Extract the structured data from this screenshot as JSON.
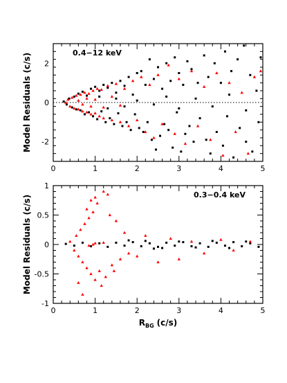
{
  "chart_data": [
    {
      "type": "scatter",
      "annotation": "0.4−12 keV",
      "xlabel": "",
      "ylabel": "Model Residuals (c/s)",
      "xlim": [
        0,
        5
      ],
      "ylim": [
        -3,
        3
      ],
      "xticks": [
        0,
        1,
        2,
        3,
        4,
        5
      ],
      "yticks": [
        -2,
        0,
        2
      ],
      "reference_line": 0,
      "colors": {
        "series_a": "#000000",
        "series_b": "#ff0000"
      },
      "series": [
        {
          "marker": "square",
          "color_key": "series_a",
          "points": [
            [
              0.25,
              0.05
            ],
            [
              0.32,
              -0.1
            ],
            [
              0.38,
              0.2
            ],
            [
              0.45,
              -0.25
            ],
            [
              0.5,
              0.3
            ],
            [
              0.55,
              -0.35
            ],
            [
              0.6,
              0.45
            ],
            [
              0.65,
              -0.4
            ],
            [
              0.7,
              0.55
            ],
            [
              0.75,
              -0.6
            ],
            [
              0.8,
              0.35
            ],
            [
              0.85,
              -0.5
            ],
            [
              0.9,
              0.7
            ],
            [
              0.95,
              -0.7
            ],
            [
              1.0,
              0.8
            ],
            [
              1.05,
              -0.85
            ],
            [
              1.1,
              0.6
            ],
            [
              1.15,
              -0.45
            ],
            [
              1.2,
              0.9
            ],
            [
              1.25,
              -1.0
            ],
            [
              1.3,
              0.75
            ],
            [
              1.35,
              -0.8
            ],
            [
              1.4,
              1.0
            ],
            [
              1.45,
              -1.1
            ],
            [
              1.5,
              0.5
            ],
            [
              1.55,
              -0.55
            ],
            [
              1.6,
              1.1
            ],
            [
              1.65,
              -1.2
            ],
            [
              1.7,
              0.85
            ],
            [
              1.75,
              -1.0
            ],
            [
              1.8,
              1.3
            ],
            [
              1.85,
              -1.4
            ],
            [
              1.9,
              0.4
            ],
            [
              1.95,
              -0.6
            ],
            [
              2.0,
              1.5
            ],
            [
              2.05,
              -1.3
            ],
            [
              2.1,
              1.6
            ],
            [
              2.15,
              -1.5
            ],
            [
              2.2,
              0.9
            ],
            [
              2.25,
              -1.0
            ],
            [
              2.3,
              2.2
            ],
            [
              2.35,
              -1.9
            ],
            [
              2.4,
              1.2
            ],
            [
              2.45,
              -2.4
            ],
            [
              2.5,
              1.8
            ],
            [
              2.55,
              -1.7
            ],
            [
              2.6,
              0.7
            ],
            [
              2.65,
              -1.1
            ],
            [
              2.7,
              2.0
            ],
            [
              2.75,
              -1.4
            ],
            [
              2.8,
              1.1
            ],
            [
              2.85,
              -2.3
            ],
            [
              2.9,
              2.3
            ],
            [
              2.95,
              -0.5
            ],
            [
              3.0,
              1.5
            ],
            [
              3.05,
              -2.5
            ],
            [
              3.1,
              0.9
            ],
            [
              3.15,
              -1.6
            ],
            [
              3.2,
              2.1
            ],
            [
              3.25,
              -1.2
            ],
            [
              3.3,
              1.7
            ],
            [
              3.35,
              -2.0
            ],
            [
              3.45,
              1.0
            ],
            [
              3.5,
              -0.8
            ],
            [
              3.6,
              2.4
            ],
            [
              3.65,
              -1.9
            ],
            [
              3.7,
              1.3
            ],
            [
              3.75,
              -2.6
            ],
            [
              3.85,
              2.0
            ],
            [
              3.9,
              -1.5
            ],
            [
              4.0,
              1.0
            ],
            [
              4.05,
              -2.2
            ],
            [
              4.1,
              2.6
            ],
            [
              4.15,
              -0.7
            ],
            [
              4.25,
              1.6
            ],
            [
              4.3,
              -2.8
            ],
            [
              4.4,
              2.2
            ],
            [
              4.45,
              -1.3
            ],
            [
              4.55,
              2.9
            ],
            [
              4.6,
              -2.0
            ],
            [
              4.7,
              1.4
            ],
            [
              4.75,
              -2.5
            ],
            [
              4.85,
              0.6
            ],
            [
              4.9,
              -1.0
            ],
            [
              4.95,
              2.3
            ],
            [
              1.1,
              0.3
            ],
            [
              1.3,
              -0.3
            ],
            [
              1.5,
              0.2
            ],
            [
              1.7,
              -0.2
            ],
            [
              2.0,
              0.1
            ],
            [
              2.4,
              -0.1
            ],
            [
              2.7,
              0.3
            ],
            [
              3.0,
              -0.3
            ],
            [
              3.4,
              0.2
            ],
            [
              3.8,
              -0.2
            ],
            [
              4.2,
              0.4
            ],
            [
              4.6,
              -0.4
            ]
          ]
        },
        {
          "marker": "triangle",
          "color_key": "series_b",
          "points": [
            [
              0.3,
              0.0
            ],
            [
              0.35,
              0.15
            ],
            [
              0.4,
              -0.2
            ],
            [
              0.45,
              0.25
            ],
            [
              0.5,
              -0.3
            ],
            [
              0.55,
              0.35
            ],
            [
              0.6,
              -0.35
            ],
            [
              0.65,
              0.4
            ],
            [
              0.7,
              -0.45
            ],
            [
              0.75,
              0.5
            ],
            [
              0.8,
              -0.5
            ],
            [
              0.85,
              0.45
            ],
            [
              0.9,
              -0.6
            ],
            [
              0.95,
              0.6
            ],
            [
              1.0,
              -0.55
            ],
            [
              1.05,
              0.7
            ],
            [
              1.1,
              -0.7
            ],
            [
              1.15,
              0.65
            ],
            [
              1.2,
              -0.8
            ],
            [
              1.3,
              0.85
            ],
            [
              1.4,
              -0.9
            ],
            [
              1.5,
              0.95
            ],
            [
              1.6,
              -1.0
            ],
            [
              1.7,
              0.7
            ],
            [
              1.8,
              -1.2
            ],
            [
              1.9,
              1.1
            ],
            [
              2.0,
              -0.9
            ],
            [
              2.1,
              1.3
            ],
            [
              2.2,
              -1.5
            ],
            [
              2.3,
              0.9
            ],
            [
              2.4,
              -1.8
            ],
            [
              2.5,
              1.4
            ],
            [
              2.6,
              -1.1
            ],
            [
              2.75,
              1.9
            ],
            [
              2.9,
              -1.6
            ],
            [
              3.0,
              1.2
            ],
            [
              3.15,
              -2.1
            ],
            [
              3.3,
              1.6
            ],
            [
              3.45,
              -1.2
            ],
            [
              3.6,
              0.8
            ],
            [
              3.75,
              -1.9
            ],
            [
              3.9,
              1.5
            ],
            [
              4.05,
              -2.7
            ],
            [
              4.2,
              1.0
            ],
            [
              4.35,
              -1.5
            ],
            [
              4.5,
              0.5
            ],
            [
              4.65,
              -2.6
            ],
            [
              4.8,
              1.3
            ],
            [
              4.95,
              1.6
            ],
            [
              0.6,
              0.1
            ],
            [
              0.7,
              -0.1
            ],
            [
              0.8,
              0.2
            ],
            [
              0.9,
              -0.2
            ],
            [
              1.0,
              0.15
            ],
            [
              1.2,
              -0.25
            ],
            [
              1.4,
              0.3
            ],
            [
              1.6,
              -0.15
            ]
          ]
        }
      ]
    },
    {
      "type": "scatter",
      "annotation": "0.3−0.4 keV",
      "xlabel": "R",
      "xlabel_sub": "BG",
      "xlabel_unit": "(c/s)",
      "ylabel": "Model Residuals (c/s)",
      "xlim": [
        0,
        5
      ],
      "ylim": [
        -1,
        1
      ],
      "xticks": [
        0,
        1,
        2,
        3,
        4,
        5
      ],
      "yticks": [
        -1,
        -0.5,
        0,
        0.5,
        1
      ],
      "colors": {
        "series_a": "#000000",
        "series_b": "#ff0000"
      },
      "series": [
        {
          "marker": "square",
          "color_key": "series_a",
          "points": [
            [
              0.3,
              0.01
            ],
            [
              0.5,
              -0.02
            ],
            [
              0.7,
              0.03
            ],
            [
              0.9,
              -0.03
            ],
            [
              1.1,
              0.02
            ],
            [
              1.3,
              -0.04
            ],
            [
              1.5,
              0.03
            ],
            [
              1.7,
              -0.02
            ],
            [
              1.9,
              0.04
            ],
            [
              2.1,
              -0.03
            ],
            [
              2.3,
              0.02
            ],
            [
              2.5,
              -0.04
            ],
            [
              2.7,
              0.03
            ],
            [
              2.9,
              -0.02
            ],
            [
              3.1,
              0.04
            ],
            [
              3.3,
              -0.03
            ],
            [
              3.5,
              0.02
            ],
            [
              3.7,
              -0.04
            ],
            [
              3.9,
              0.03
            ],
            [
              4.1,
              -0.02
            ],
            [
              4.3,
              0.04
            ],
            [
              4.5,
              -0.03
            ],
            [
              4.7,
              0.02
            ],
            [
              4.9,
              -0.04
            ],
            [
              2.2,
              0.06
            ],
            [
              2.6,
              -0.06
            ],
            [
              3.0,
              0.05
            ],
            [
              3.4,
              -0.05
            ],
            [
              3.8,
              0.06
            ],
            [
              4.2,
              -0.06
            ],
            [
              4.6,
              0.05
            ],
            [
              1.8,
              0.07
            ],
            [
              2.4,
              -0.07
            ]
          ]
        },
        {
          "marker": "triangle",
          "color_key": "series_b",
          "points": [
            [
              0.4,
              0.05
            ],
            [
              0.5,
              -0.1
            ],
            [
              0.55,
              0.15
            ],
            [
              0.6,
              -0.2
            ],
            [
              0.65,
              0.25
            ],
            [
              0.7,
              -0.3
            ],
            [
              0.75,
              0.35
            ],
            [
              0.8,
              -0.4
            ],
            [
              0.85,
              0.45
            ],
            [
              0.9,
              -0.5
            ],
            [
              0.95,
              0.55
            ],
            [
              1.0,
              -0.6
            ],
            [
              1.05,
              0.7
            ],
            [
              1.1,
              -0.45
            ],
            [
              1.2,
              0.9
            ],
            [
              1.25,
              -0.55
            ],
            [
              1.3,
              0.85
            ],
            [
              1.4,
              -0.35
            ],
            [
              1.5,
              0.4
            ],
            [
              1.6,
              -0.25
            ],
            [
              1.7,
              0.2
            ],
            [
              1.8,
              -0.15
            ],
            [
              0.7,
              -0.85
            ],
            [
              0.9,
              0.75
            ],
            [
              1.0,
              0.8
            ],
            [
              1.15,
              -0.7
            ],
            [
              0.8,
              0.6
            ],
            [
              0.6,
              -0.65
            ],
            [
              1.35,
              0.5
            ],
            [
              1.45,
              -0.45
            ],
            [
              2.0,
              -0.2
            ],
            [
              2.2,
              0.15
            ],
            [
              2.5,
              -0.3
            ],
            [
              2.8,
              0.1
            ],
            [
              3.0,
              -0.25
            ],
            [
              3.3,
              0.05
            ],
            [
              3.6,
              -0.15
            ],
            [
              4.0,
              0.08
            ],
            [
              4.3,
              -0.1
            ],
            [
              4.7,
              0.05
            ],
            [
              0.95,
              0.0
            ],
            [
              1.0,
              0.02
            ],
            [
              0.85,
              -0.02
            ],
            [
              1.2,
              0.03
            ]
          ]
        }
      ]
    }
  ]
}
